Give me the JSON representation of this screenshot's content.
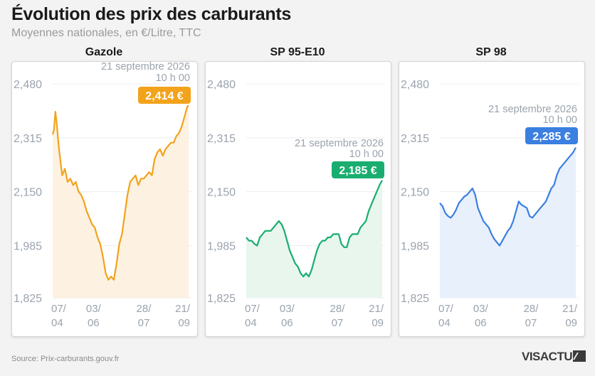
{
  "title": "Évolution des prix des carburants",
  "subtitle": "Moyennes nationales, en €/Litre, TTC",
  "source": "Source: Prix-carburants.gouv.fr",
  "logo": "VISACTU",
  "chart_data": [
    {
      "type": "line",
      "title": "Gazole",
      "color": "#f2a31b",
      "fill": "#fdf1e2",
      "ylim": [
        1.825,
        2.48
      ],
      "yticks": [
        "2,480",
        "2,315",
        "2,150",
        "1,985",
        "1,825"
      ],
      "ytick_values": [
        2.48,
        2.315,
        2.15,
        1.985,
        1.825
      ],
      "xticks": [
        [
          "07/",
          "04"
        ],
        [
          "03/",
          "06"
        ],
        [
          "28/",
          "07"
        ],
        [
          "21/",
          "09"
        ]
      ],
      "xtick_positions": [
        0,
        0.3,
        0.67,
        1
      ],
      "annotation_date": "21 septembre 2026",
      "annotation_time": "10 h 00",
      "last_value_label": "2,414 €",
      "x": [
        0,
        0.01,
        0.02,
        0.03,
        0.04,
        0.05,
        0.07,
        0.09,
        0.11,
        0.13,
        0.15,
        0.17,
        0.19,
        0.21,
        0.23,
        0.25,
        0.27,
        0.29,
        0.31,
        0.33,
        0.35,
        0.37,
        0.39,
        0.41,
        0.43,
        0.45,
        0.47,
        0.49,
        0.51,
        0.53,
        0.55,
        0.57,
        0.59,
        0.61,
        0.63,
        0.65,
        0.67,
        0.69,
        0.71,
        0.73,
        0.75,
        0.77,
        0.79,
        0.81,
        0.83,
        0.85,
        0.87,
        0.89,
        0.91,
        0.93,
        0.95,
        0.97,
        0.99,
        1.0
      ],
      "values": [
        2.325,
        2.34,
        2.395,
        2.36,
        2.31,
        2.27,
        2.2,
        2.22,
        2.18,
        2.19,
        2.17,
        2.18,
        2.15,
        2.14,
        2.12,
        2.09,
        2.07,
        2.05,
        2.04,
        2.01,
        1.99,
        1.95,
        1.9,
        1.88,
        1.89,
        1.88,
        1.93,
        1.99,
        2.02,
        2.08,
        2.14,
        2.18,
        2.19,
        2.2,
        2.17,
        2.19,
        2.19,
        2.2,
        2.21,
        2.2,
        2.25,
        2.27,
        2.28,
        2.26,
        2.28,
        2.29,
        2.3,
        2.3,
        2.32,
        2.33,
        2.35,
        2.38,
        2.41,
        2.414
      ]
    },
    {
      "type": "line",
      "title": "SP 95-E10",
      "color": "#19ae6f",
      "fill": "#e8f6ee",
      "ylim": [
        1.825,
        2.48
      ],
      "yticks": [
        "2,480",
        "2,315",
        "2,150",
        "1,985",
        "1,825"
      ],
      "ytick_values": [
        2.48,
        2.315,
        2.15,
        1.985,
        1.825
      ],
      "xticks": [
        [
          "07/",
          "04"
        ],
        [
          "03/",
          "06"
        ],
        [
          "28/",
          "07"
        ],
        [
          "21/",
          "09"
        ]
      ],
      "xtick_positions": [
        0,
        0.3,
        0.67,
        1
      ],
      "annotation_date": "21 septembre 2026",
      "annotation_time": "10 h 00",
      "last_value_label": "2,185 €",
      "x": [
        0,
        0.02,
        0.04,
        0.06,
        0.08,
        0.1,
        0.12,
        0.14,
        0.16,
        0.18,
        0.2,
        0.22,
        0.24,
        0.26,
        0.28,
        0.3,
        0.32,
        0.34,
        0.36,
        0.38,
        0.4,
        0.42,
        0.44,
        0.46,
        0.48,
        0.5,
        0.52,
        0.54,
        0.56,
        0.58,
        0.6,
        0.62,
        0.64,
        0.66,
        0.68,
        0.7,
        0.72,
        0.74,
        0.76,
        0.78,
        0.8,
        0.82,
        0.84,
        0.86,
        0.88,
        0.9,
        0.92,
        0.94,
        0.96,
        0.98,
        1.0
      ],
      "values": [
        2.01,
        2.0,
        2.0,
        1.99,
        1.985,
        2.01,
        2.02,
        2.03,
        2.03,
        2.03,
        2.04,
        2.05,
        2.06,
        2.05,
        2.03,
        2.0,
        1.97,
        1.95,
        1.93,
        1.92,
        1.9,
        1.89,
        1.9,
        1.89,
        1.91,
        1.94,
        1.97,
        1.99,
        2.0,
        2.0,
        2.01,
        2.01,
        2.02,
        2.02,
        2.02,
        1.99,
        1.98,
        1.98,
        2.01,
        2.02,
        2.02,
        2.02,
        2.04,
        2.05,
        2.06,
        2.09,
        2.11,
        2.13,
        2.15,
        2.17,
        2.185
      ]
    },
    {
      "type": "line",
      "title": "SP 98",
      "color": "#3b7fe0",
      "fill": "#e8f0fb",
      "ylim": [
        1.825,
        2.48
      ],
      "yticks": [
        "2,480",
        "2,315",
        "2,150",
        "1,985",
        "1,825"
      ],
      "ytick_values": [
        2.48,
        2.315,
        2.15,
        1.985,
        1.825
      ],
      "xticks": [
        [
          "07/",
          "04"
        ],
        [
          "03/",
          "06"
        ],
        [
          "28/",
          "07"
        ],
        [
          "21/",
          "09"
        ]
      ],
      "xtick_positions": [
        0,
        0.3,
        0.67,
        1
      ],
      "annotation_date": "21 septembre 2026",
      "annotation_time": "10 h 00",
      "last_value_label": "2,285 €",
      "x": [
        0,
        0.02,
        0.04,
        0.06,
        0.08,
        0.1,
        0.12,
        0.14,
        0.16,
        0.18,
        0.2,
        0.22,
        0.24,
        0.26,
        0.28,
        0.3,
        0.32,
        0.34,
        0.36,
        0.38,
        0.4,
        0.42,
        0.44,
        0.46,
        0.48,
        0.5,
        0.52,
        0.54,
        0.56,
        0.58,
        0.6,
        0.62,
        0.64,
        0.66,
        0.68,
        0.7,
        0.72,
        0.74,
        0.76,
        0.78,
        0.8,
        0.82,
        0.84,
        0.86,
        0.88,
        0.9,
        0.92,
        0.94,
        0.96,
        0.98,
        1.0
      ],
      "values": [
        2.115,
        2.105,
        2.085,
        2.075,
        2.07,
        2.08,
        2.095,
        2.115,
        2.125,
        2.135,
        2.14,
        2.15,
        2.16,
        2.14,
        2.1,
        2.08,
        2.06,
        2.05,
        2.04,
        2.02,
        2.005,
        1.995,
        1.985,
        2.0,
        2.015,
        2.03,
        2.04,
        2.06,
        2.09,
        2.12,
        2.11,
        2.105,
        2.1,
        2.075,
        2.07,
        2.08,
        2.09,
        2.1,
        2.11,
        2.12,
        2.14,
        2.16,
        2.17,
        2.2,
        2.22,
        2.23,
        2.24,
        2.25,
        2.26,
        2.27,
        2.285
      ]
    }
  ]
}
